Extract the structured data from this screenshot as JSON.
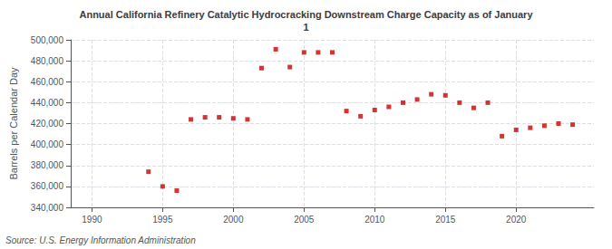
{
  "chart_data": {
    "type": "scatter",
    "title": "Annual California Refinery Catalytic Hydrocracking Downstream Charge Capacity as of January\n1",
    "ylabel": "Barrels per Calendar Day",
    "source": "Source: U.S. Energy Information Administration",
    "x": [
      1994,
      1995,
      1996,
      1997,
      1998,
      1999,
      2000,
      2001,
      2002,
      2003,
      2004,
      2005,
      2006,
      2007,
      2008,
      2009,
      2010,
      2011,
      2012,
      2013,
      2014,
      2015,
      2016,
      2017,
      2018,
      2019,
      2020,
      2021,
      2022,
      2023,
      2024
    ],
    "values": [
      374000,
      360000,
      356000,
      424000,
      426000,
      426000,
      425000,
      424000,
      473000,
      491000,
      474000,
      488000,
      488000,
      488000,
      432000,
      427000,
      433000,
      436000,
      440000,
      443000,
      448000,
      447000,
      440000,
      435000,
      440000,
      408000,
      414000,
      416000,
      418000,
      420000,
      419000
    ],
    "color": "#cc0000",
    "marker": "square",
    "xlim": [
      1988.5,
      2025.5
    ],
    "xticks": [
      1990,
      1995,
      2000,
      2005,
      2010,
      2015,
      2020
    ],
    "ylim": [
      340000,
      500000
    ],
    "yticks": [
      {
        "value": 340000,
        "label": "340,000"
      },
      {
        "value": 360000,
        "label": "360,000"
      },
      {
        "value": 380000,
        "label": "380,000"
      },
      {
        "value": 400000,
        "label": "400,000"
      },
      {
        "value": 420000,
        "label": "420,000"
      },
      {
        "value": 440000,
        "label": "440,000"
      },
      {
        "value": 460000,
        "label": "460,000"
      },
      {
        "value": 480000,
        "label": "480,000"
      },
      {
        "value": 500000,
        "label": "500,000"
      }
    ],
    "grid": true
  }
}
